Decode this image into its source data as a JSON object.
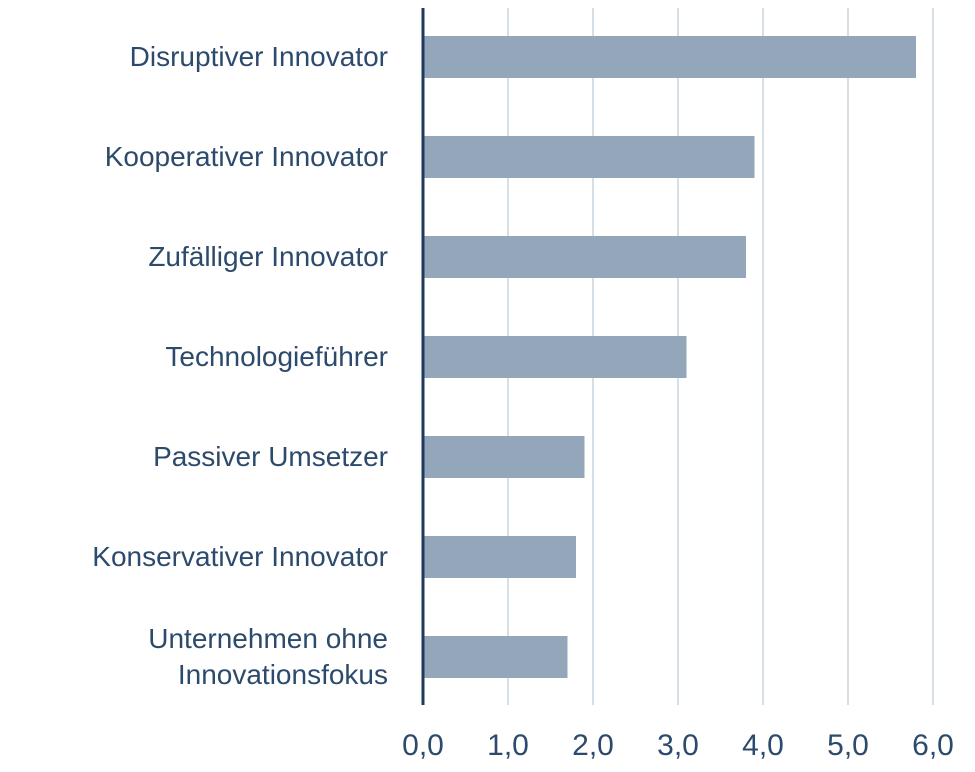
{
  "chart_data": {
    "type": "hbar",
    "categories": [
      "Disruptiver Innovator",
      "Kooperativer Innovator",
      "Zufälliger Innovator",
      "Technologieführer",
      "Passiver Umsetzer",
      "Konservativer Innovator",
      "Unternehmen ohne\nInnovationsfokus"
    ],
    "values": [
      5.8,
      3.9,
      3.8,
      3.1,
      1.9,
      1.8,
      1.7
    ],
    "color": "#94a7ba",
    "xlim": [
      0,
      6
    ],
    "xticks": [
      {
        "value": 0,
        "label": "0,0"
      },
      {
        "value": 1,
        "label": "1,0"
      },
      {
        "value": 2,
        "label": "2,0"
      },
      {
        "value": 3,
        "label": "3,0"
      },
      {
        "value": 4,
        "label": "4,0"
      },
      {
        "value": 5,
        "label": "5,0"
      },
      {
        "value": 6,
        "label": "6,0"
      }
    ],
    "grid": true
  }
}
